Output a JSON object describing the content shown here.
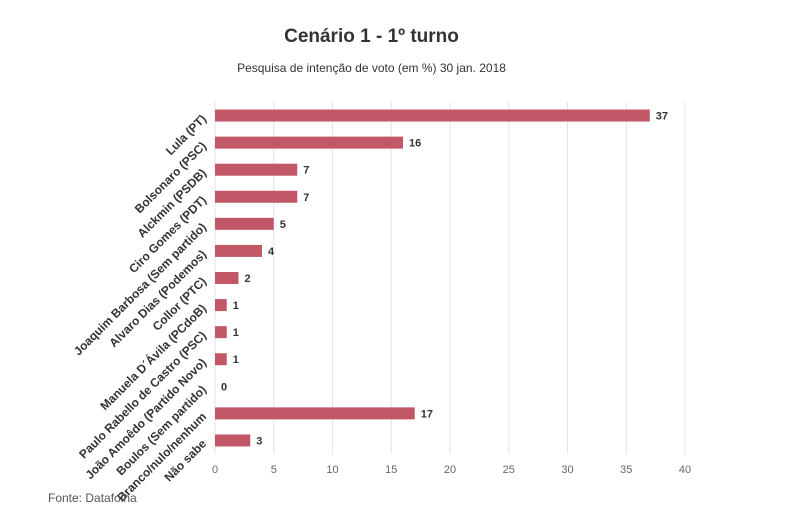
{
  "chart_data": {
    "type": "bar",
    "orientation": "horizontal",
    "title": "Cenário 1 - 1º turno",
    "subtitle": "Pesquisa de intenção de voto (em %) 30 jan. 2018",
    "categories": [
      "Lula (PT)",
      "Bolsonaro (PSC)",
      "Alckmin (PSDB)",
      "Ciro Gomes (PDT)",
      "Joaquim Barbosa (Sem partido)",
      "Alvaro Dias (Podemos)",
      "Collor (PTC)",
      "Manuela D´Ávila (PCdoB)",
      "Paulo Rabello de Castro (PSC)",
      "João Amoêdo (Partido Novo)",
      "Boulos (Sem partido)",
      "Branco/nulo/nenhum",
      "Não sabe"
    ],
    "values": [
      37,
      16,
      7,
      7,
      5,
      4,
      2,
      1,
      1,
      1,
      0,
      17,
      3
    ],
    "xlim": [
      0,
      40
    ],
    "xticks": [
      0,
      5,
      10,
      15,
      20,
      25,
      30,
      35,
      40
    ],
    "grid": true,
    "bar_color": "#c15767",
    "source": "Fonte: Datafolha"
  }
}
